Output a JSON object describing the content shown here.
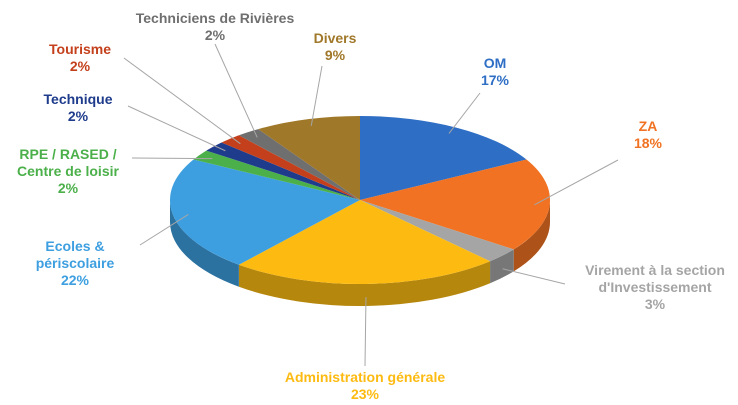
{
  "chart_data": {
    "type": "pie",
    "3d": true,
    "categories": [
      "OM",
      "ZA",
      "Virement à la section d'Investissement",
      "Administration générale",
      "Ecoles & périscolaire",
      "RPE / RASED / Centre de loisir",
      "Technique",
      "Tourisme",
      "Techniciens de Rivières",
      "Divers"
    ],
    "values": [
      17,
      18,
      3,
      23,
      22,
      2,
      2,
      2,
      2,
      9
    ],
    "value_labels": [
      "17%",
      "18%",
      "3%",
      "23%",
      "22%",
      "2%",
      "2%",
      "2%",
      "2%",
      "9%"
    ],
    "colors": [
      "#2e6ec4",
      "#f07222",
      "#a5a5a5",
      "#fdbb12",
      "#3d9fe0",
      "#4bb04a",
      "#1f3c8c",
      "#c4401c",
      "#6f6f6f",
      "#a0782a"
    ]
  }
}
